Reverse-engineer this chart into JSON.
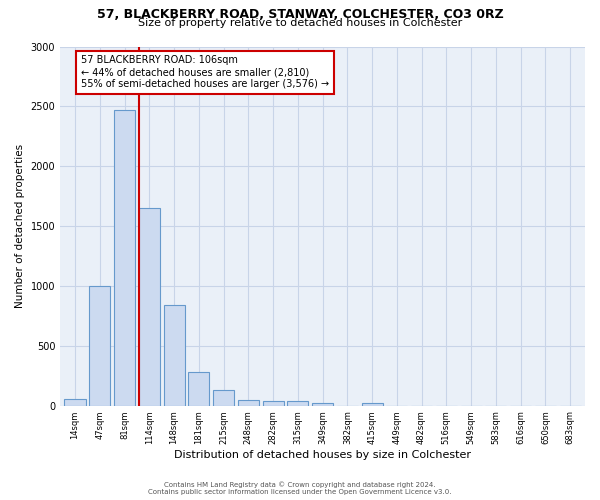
{
  "title1": "57, BLACKBERRY ROAD, STANWAY, COLCHESTER, CO3 0RZ",
  "title2": "Size of property relative to detached houses in Colchester",
  "xlabel": "Distribution of detached houses by size in Colchester",
  "ylabel": "Number of detached properties",
  "bin_labels": [
    "14sqm",
    "47sqm",
    "81sqm",
    "114sqm",
    "148sqm",
    "181sqm",
    "215sqm",
    "248sqm",
    "282sqm",
    "315sqm",
    "349sqm",
    "382sqm",
    "415sqm",
    "449sqm",
    "482sqm",
    "516sqm",
    "549sqm",
    "583sqm",
    "616sqm",
    "650sqm",
    "683sqm"
  ],
  "bar_heights": [
    55,
    1000,
    2470,
    1650,
    840,
    280,
    130,
    50,
    40,
    40,
    25,
    0,
    20,
    0,
    0,
    0,
    0,
    0,
    0,
    0,
    0
  ],
  "bar_color": "#ccdaf0",
  "bar_edge_color": "#6699cc",
  "vline_color": "#cc0000",
  "annotation_text": "57 BLACKBERRY ROAD: 106sqm\n← 44% of detached houses are smaller (2,810)\n55% of semi-detached houses are larger (3,576) →",
  "annotation_box_color": "#cc0000",
  "ylim": [
    0,
    3000
  ],
  "yticks": [
    0,
    500,
    1000,
    1500,
    2000,
    2500,
    3000
  ],
  "footer1": "Contains HM Land Registry data © Crown copyright and database right 2024.",
  "footer2": "Contains public sector information licensed under the Open Government Licence v3.0.",
  "bg_color": "#ffffff",
  "grid_color": "#c8d4e8",
  "plot_bg": "#eaf0f8",
  "title_fontsize": 9,
  "subtitle_fontsize": 8,
  "ylabel_fontsize": 7.5,
  "xlabel_fontsize": 8,
  "tick_fontsize": 6,
  "footer_fontsize": 5,
  "annot_fontsize": 7
}
